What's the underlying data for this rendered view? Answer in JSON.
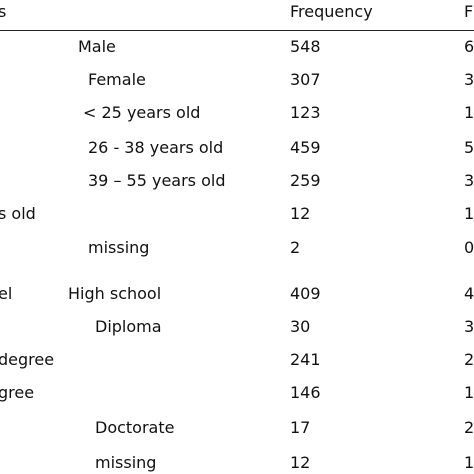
{
  "table": {
    "header": {
      "variable": "s",
      "frequency": "Frequency",
      "percent": "F"
    },
    "rows": [
      {
        "label": "Male",
        "frequency": 548,
        "percent": "6"
      },
      {
        "label": "Female",
        "frequency": 307,
        "percent": "3"
      },
      {
        "label": "< 25 years old",
        "frequency": 123,
        "percent": "1"
      },
      {
        "label": "26 - 38 years old",
        "frequency": 459,
        "percent": "5"
      },
      {
        "label": "39 – 55 years old",
        "frequency": 259,
        "percent": "3"
      },
      {
        "group": "s old",
        "frequency": 12,
        "percent": "1"
      },
      {
        "label": "missing",
        "frequency": 2,
        "percent": "0"
      },
      {
        "group": "el",
        "label": "High school",
        "frequency": 409,
        "percent": "4"
      },
      {
        "label": "Diploma",
        "frequency": 30,
        "percent": "3"
      },
      {
        "group": "degree",
        "frequency": 241,
        "percent": "2"
      },
      {
        "group": "gree",
        "frequency": 146,
        "percent": "1"
      },
      {
        "label": "Doctorate",
        "frequency": 17,
        "percent": "2"
      },
      {
        "label": "missing",
        "frequency": 12,
        "percent": "1"
      }
    ]
  }
}
